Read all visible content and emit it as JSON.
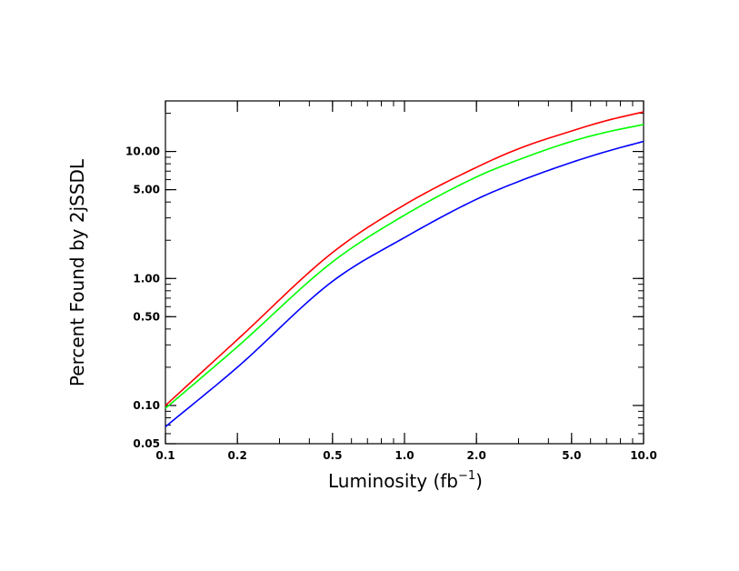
{
  "chart_data": {
    "type": "line",
    "title": "",
    "xlabel_main": "Luminosity (fb",
    "xlabel_sup": "−1",
    "xlabel_close": ")",
    "ylabel": "Percent Found by 2jSSDL",
    "x_scale": "log",
    "y_scale": "log",
    "xlim": [
      0.1,
      10.0
    ],
    "ylim": [
      0.05,
      25.0
    ],
    "grid": false,
    "legend": "none",
    "x_ticks": [
      {
        "value": 0.1,
        "label": "0.1"
      },
      {
        "value": 0.2,
        "label": "0.2"
      },
      {
        "value": 0.5,
        "label": "0.5"
      },
      {
        "value": 1.0,
        "label": "1.0"
      },
      {
        "value": 2.0,
        "label": "2.0"
      },
      {
        "value": 5.0,
        "label": "5.0"
      },
      {
        "value": 10.0,
        "label": "10.0"
      }
    ],
    "y_ticks": [
      {
        "value": 0.05,
        "label": "0.05"
      },
      {
        "value": 0.1,
        "label": "0.10"
      },
      {
        "value": 0.5,
        "label": "0.50"
      },
      {
        "value": 1.0,
        "label": "1.00"
      },
      {
        "value": 5.0,
        "label": "5.00"
      },
      {
        "value": 10.0,
        "label": "10.00"
      }
    ],
    "series": [
      {
        "color": "#ff0000",
        "x": [
          0.1,
          0.2,
          0.5,
          1.0,
          2.0,
          3.0,
          5.0,
          7.0,
          10.0
        ],
        "y": [
          0.1,
          0.33,
          1.6,
          3.8,
          7.5,
          10.5,
          14.5,
          17.5,
          20.5
        ]
      },
      {
        "color": "#00ff00",
        "x": [
          0.1,
          0.2,
          0.5,
          1.0,
          2.0,
          3.0,
          5.0,
          7.0,
          10.0
        ],
        "y": [
          0.095,
          0.29,
          1.35,
          3.15,
          6.3,
          8.6,
          12.0,
          14.2,
          16.3
        ]
      },
      {
        "color": "#0000ff",
        "x": [
          0.1,
          0.2,
          0.5,
          1.0,
          2.0,
          3.0,
          5.0,
          7.0,
          10.0
        ],
        "y": [
          0.068,
          0.2,
          0.95,
          2.1,
          4.2,
          5.8,
          8.2,
          10.0,
          12.0
        ]
      }
    ]
  }
}
